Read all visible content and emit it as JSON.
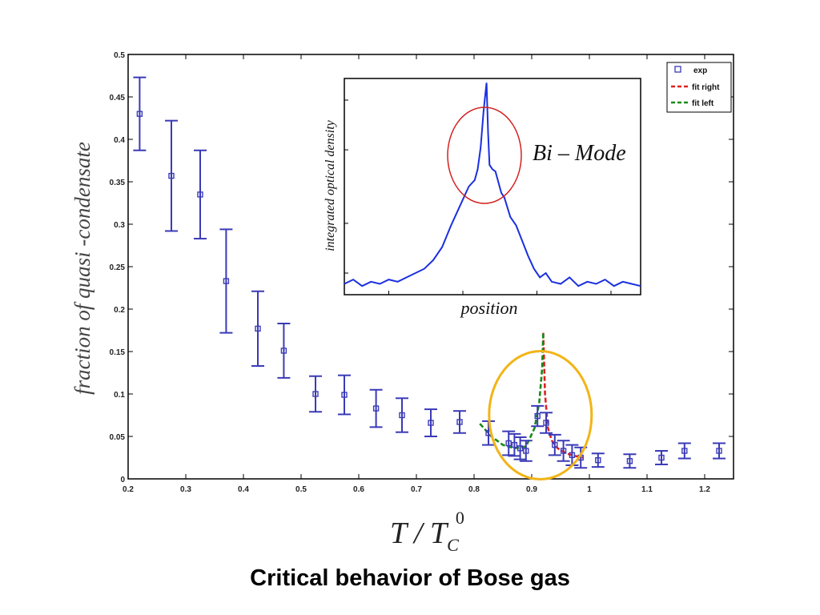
{
  "slide_title": "Critical behavior of Bose gas",
  "chart_data": [
    {
      "type": "scatter",
      "ylabel": "fraction of quasi -condensate",
      "xlabel": "T / T_C^0",
      "xlabel_parts": {
        "main": "T / T",
        "sub": "C",
        "sup": "0"
      },
      "xlim": [
        0.2,
        1.25
      ],
      "ylim": [
        0,
        0.5
      ],
      "x_ticks": [
        "0.2",
        "0.3",
        "0.4",
        "0.5",
        "0.6",
        "0.7",
        "0.8",
        "0.9",
        "1",
        "1.1",
        "1.2"
      ],
      "y_ticks": [
        "0",
        "0.05",
        "0.1",
        "0.15",
        "0.2",
        "0.25",
        "0.3",
        "0.35",
        "0.4",
        "0.45",
        "0.5"
      ],
      "legend": [
        "exp",
        "fit right",
        "fit left"
      ],
      "legend_position": "top-right",
      "colors": {
        "exp": "#3a3ab8",
        "fit right": "#dd2222",
        "fit left": "#1a8a1a",
        "highlight": "#f2b417"
      },
      "series": [
        {
          "name": "exp",
          "x": [
            0.22,
            0.275,
            0.325,
            0.37,
            0.425,
            0.47,
            0.525,
            0.575,
            0.63,
            0.675,
            0.725,
            0.775,
            0.825,
            0.86,
            0.87,
            0.88,
            0.89,
            0.91,
            0.925,
            0.94,
            0.955,
            0.97,
            0.985,
            1.015,
            1.07,
            1.125,
            1.165,
            1.225
          ],
          "y": [
            0.43,
            0.357,
            0.335,
            0.233,
            0.177,
            0.151,
            0.1,
            0.099,
            0.083,
            0.075,
            0.066,
            0.067,
            0.054,
            0.042,
            0.04,
            0.036,
            0.033,
            0.074,
            0.066,
            0.04,
            0.033,
            0.028,
            0.025,
            0.022,
            0.021,
            0.025,
            0.033,
            0.033
          ],
          "err": [
            0.043,
            0.065,
            0.052,
            0.061,
            0.044,
            0.032,
            0.021,
            0.023,
            0.022,
            0.02,
            0.016,
            0.013,
            0.014,
            0.014,
            0.013,
            0.013,
            0.012,
            0.012,
            0.012,
            0.012,
            0.012,
            0.012,
            0.012,
            0.008,
            0.008,
            0.008,
            0.009,
            0.009
          ]
        },
        {
          "name": "fit right",
          "x": [
            0.92,
            0.923,
            0.928,
            0.935,
            0.945,
            0.96,
            0.975,
            0.99
          ],
          "y": [
            0.172,
            0.1,
            0.06,
            0.045,
            0.036,
            0.03,
            0.027,
            0.025
          ]
        },
        {
          "name": "fit left",
          "x": [
            0.81,
            0.83,
            0.85,
            0.87,
            0.89,
            0.905,
            0.913,
            0.918,
            0.92
          ],
          "y": [
            0.065,
            0.05,
            0.04,
            0.036,
            0.038,
            0.06,
            0.09,
            0.13,
            0.172
          ]
        }
      ]
    },
    {
      "type": "line",
      "ylabel": "integrated optical density",
      "xlabel": "position",
      "annotation": "Bi – Mode",
      "xlim": [
        0,
        1
      ],
      "ylim": [
        0,
        1
      ],
      "series": [
        {
          "name": "",
          "x": [
            0,
            0.03,
            0.06,
            0.09,
            0.12,
            0.15,
            0.18,
            0.21,
            0.24,
            0.27,
            0.3,
            0.33,
            0.36,
            0.38,
            0.4,
            0.42,
            0.44,
            0.45,
            0.46,
            0.47,
            0.48,
            0.485,
            0.49,
            0.5,
            0.51,
            0.52,
            0.53,
            0.54,
            0.56,
            0.58,
            0.6,
            0.62,
            0.64,
            0.66,
            0.68,
            0.7,
            0.73,
            0.76,
            0.79,
            0.82,
            0.85,
            0.88,
            0.91,
            0.94,
            0.97,
            1.0
          ],
          "y": [
            0.05,
            0.07,
            0.04,
            0.06,
            0.05,
            0.07,
            0.06,
            0.08,
            0.1,
            0.12,
            0.16,
            0.22,
            0.32,
            0.38,
            0.44,
            0.5,
            0.53,
            0.58,
            0.68,
            0.85,
            0.98,
            0.75,
            0.6,
            0.58,
            0.57,
            0.52,
            0.47,
            0.45,
            0.36,
            0.32,
            0.25,
            0.18,
            0.12,
            0.08,
            0.1,
            0.06,
            0.05,
            0.08,
            0.04,
            0.06,
            0.05,
            0.07,
            0.04,
            0.06,
            0.05,
            0.04
          ]
        }
      ]
    }
  ]
}
